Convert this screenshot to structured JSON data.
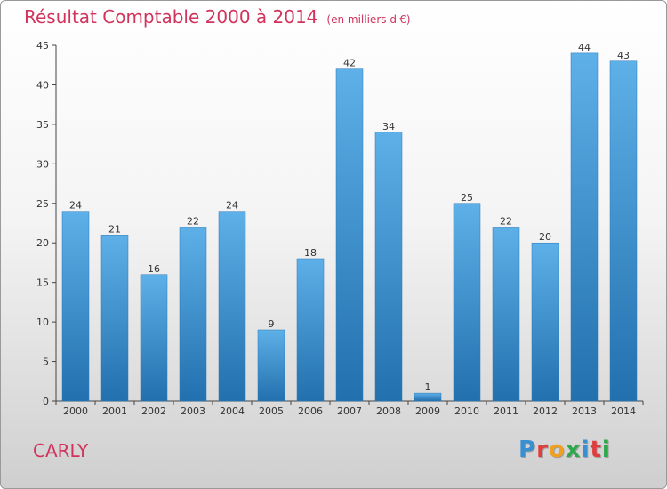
{
  "chart_data": {
    "type": "bar",
    "title": "Résultat Comptable 2000 à 2014",
    "subtitle": "(en milliers d'€)",
    "categories": [
      "2000",
      "2001",
      "2002",
      "2003",
      "2004",
      "2005",
      "2006",
      "2007",
      "2008",
      "2009",
      "2010",
      "2011",
      "2012",
      "2013",
      "2014"
    ],
    "values": [
      24,
      21,
      16,
      22,
      24,
      9,
      18,
      42,
      34,
      1,
      25,
      22,
      20,
      44,
      43
    ],
    "ylim": [
      0,
      45
    ],
    "yticks": [
      0,
      5,
      10,
      15,
      20,
      25,
      30,
      35,
      40,
      45
    ],
    "grid": false,
    "legend": "none",
    "bar_color": "#3f94d3"
  },
  "footer": {
    "place": "CARLY",
    "logo_letters": [
      "P",
      "r",
      "o",
      "x",
      "i",
      "t",
      "i"
    ],
    "logo_colors": [
      "#3a8fd0",
      "#e23d3d",
      "#f0a020",
      "#2da84a",
      "#3a8fd0",
      "#e23d3d",
      "#2da84a"
    ]
  },
  "colors": {
    "title": "#d1335c",
    "bar": "#3f94d3",
    "bar_dark": "#2270ae"
  }
}
